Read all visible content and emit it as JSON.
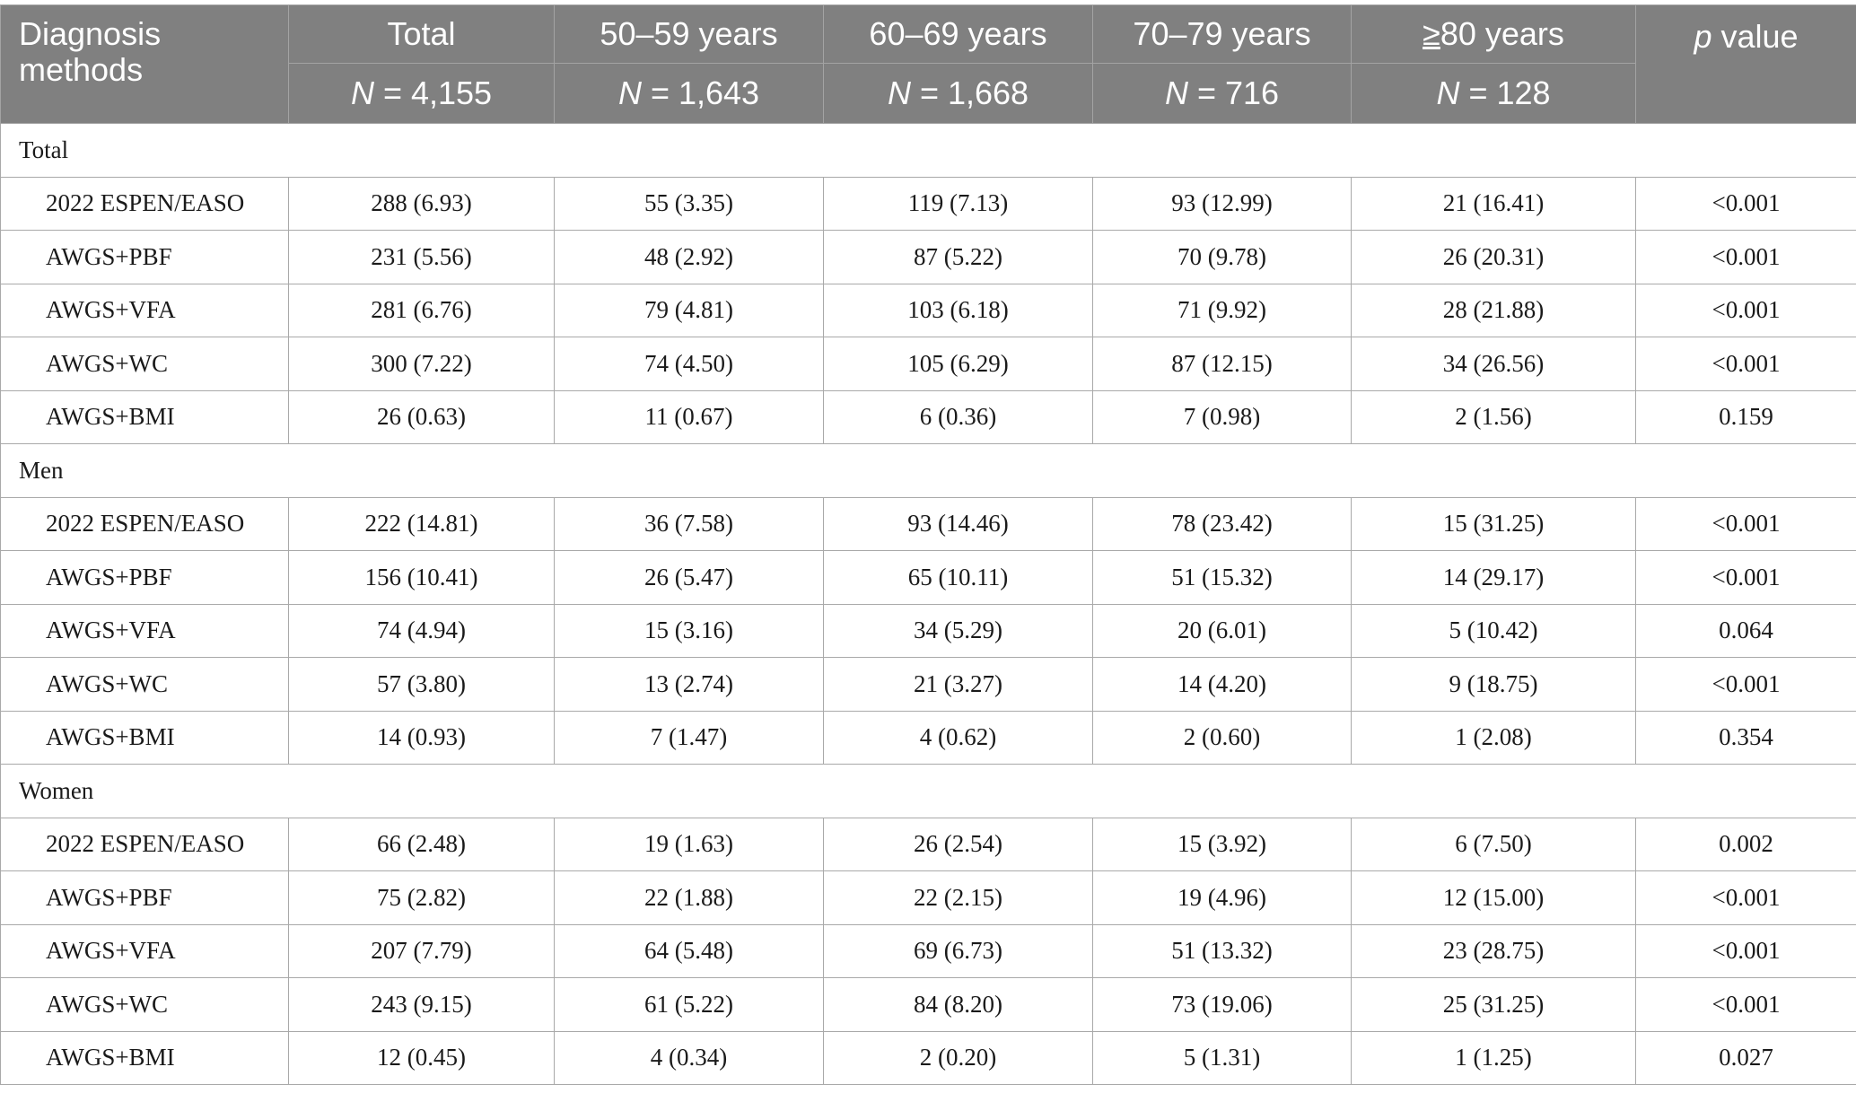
{
  "header": {
    "diagnosis": "Diagnosis methods",
    "pvalue_p": "p",
    "pvalue_rest": " value",
    "columns": [
      {
        "label": "Total",
        "n_label": "N",
        "n_value": " = 4,155"
      },
      {
        "label": "50–59 years",
        "n_label": "N",
        "n_value": " = 1,643"
      },
      {
        "label": "60–69 years",
        "n_label": "N",
        "n_value": " = 1,668"
      },
      {
        "label": "70–79 years",
        "n_label": "N",
        "n_value": " = 716"
      },
      {
        "label_symbol": "≥",
        "label_rest": "80 years",
        "n_label": "N",
        "n_value": " = 128"
      }
    ]
  },
  "sections": [
    {
      "title": "Total",
      "rows": [
        {
          "method": "2022 ESPEN/EASO",
          "total": "288 (6.93)",
          "g50": "55 (3.35)",
          "g60": "119 (7.13)",
          "g70": "93 (12.99)",
          "g80": "21 (16.41)",
          "p": "<0.001"
        },
        {
          "method": "AWGS+PBF",
          "total": "231 (5.56)",
          "g50": "48 (2.92)",
          "g60": "87 (5.22)",
          "g70": "70 (9.78)",
          "g80": "26 (20.31)",
          "p": "<0.001"
        },
        {
          "method": "AWGS+VFA",
          "total": "281 (6.76)",
          "g50": "79 (4.81)",
          "g60": "103 (6.18)",
          "g70": "71 (9.92)",
          "g80": "28 (21.88)",
          "p": "<0.001"
        },
        {
          "method": "AWGS+WC",
          "total": "300 (7.22)",
          "g50": "74 (4.50)",
          "g60": "105 (6.29)",
          "g70": "87 (12.15)",
          "g80": "34 (26.56)",
          "p": "<0.001"
        },
        {
          "method": "AWGS+BMI",
          "total": "26 (0.63)",
          "g50": "11 (0.67)",
          "g60": "6 (0.36)",
          "g70": "7 (0.98)",
          "g80": "2 (1.56)",
          "p": "0.159"
        }
      ]
    },
    {
      "title": "Men",
      "rows": [
        {
          "method": "2022 ESPEN/EASO",
          "total": "222 (14.81)",
          "g50": "36 (7.58)",
          "g60": "93 (14.46)",
          "g70": "78 (23.42)",
          "g80": "15 (31.25)",
          "p": "<0.001"
        },
        {
          "method": "AWGS+PBF",
          "total": "156 (10.41)",
          "g50": "26 (5.47)",
          "g60": "65 (10.11)",
          "g70": "51 (15.32)",
          "g80": "14 (29.17)",
          "p": "<0.001"
        },
        {
          "method": "AWGS+VFA",
          "total": "74 (4.94)",
          "g50": "15 (3.16)",
          "g60": "34 (5.29)",
          "g70": "20 (6.01)",
          "g80": "5 (10.42)",
          "p": "0.064"
        },
        {
          "method": "AWGS+WC",
          "total": "57 (3.80)",
          "g50": "13 (2.74)",
          "g60": "21 (3.27)",
          "g70": "14 (4.20)",
          "g80": "9 (18.75)",
          "p": "<0.001"
        },
        {
          "method": "AWGS+BMI",
          "total": "14 (0.93)",
          "g50": "7 (1.47)",
          "g60": "4 (0.62)",
          "g70": "2 (0.60)",
          "g80": "1 (2.08)",
          "p": "0.354"
        }
      ]
    },
    {
      "title": "Women",
      "rows": [
        {
          "method": "2022 ESPEN/EASO",
          "total": "66 (2.48)",
          "g50": "19 (1.63)",
          "g60": "26 (2.54)",
          "g70": "15 (3.92)",
          "g80": "6 (7.50)",
          "p": "0.002"
        },
        {
          "method": "AWGS+PBF",
          "total": "75 (2.82)",
          "g50": "22 (1.88)",
          "g60": "22 (2.15)",
          "g70": "19 (4.96)",
          "g80": "12 (15.00)",
          "p": "<0.001"
        },
        {
          "method": "AWGS+VFA",
          "total": "207 (7.79)",
          "g50": "64 (5.48)",
          "g60": "69 (6.73)",
          "g70": "51 (13.32)",
          "g80": "23 (28.75)",
          "p": "<0.001"
        },
        {
          "method": "AWGS+WC",
          "total": "243 (9.15)",
          "g50": "61 (5.22)",
          "g60": "84 (8.20)",
          "g70": "73 (19.06)",
          "g80": "25 (31.25)",
          "p": "<0.001"
        },
        {
          "method": "AWGS+BMI",
          "total": "12 (0.45)",
          "g50": "4 (0.34)",
          "g60": "2 (0.20)",
          "g70": "5 (1.31)",
          "g80": "1 (1.25)",
          "p": "0.027"
        }
      ]
    }
  ]
}
